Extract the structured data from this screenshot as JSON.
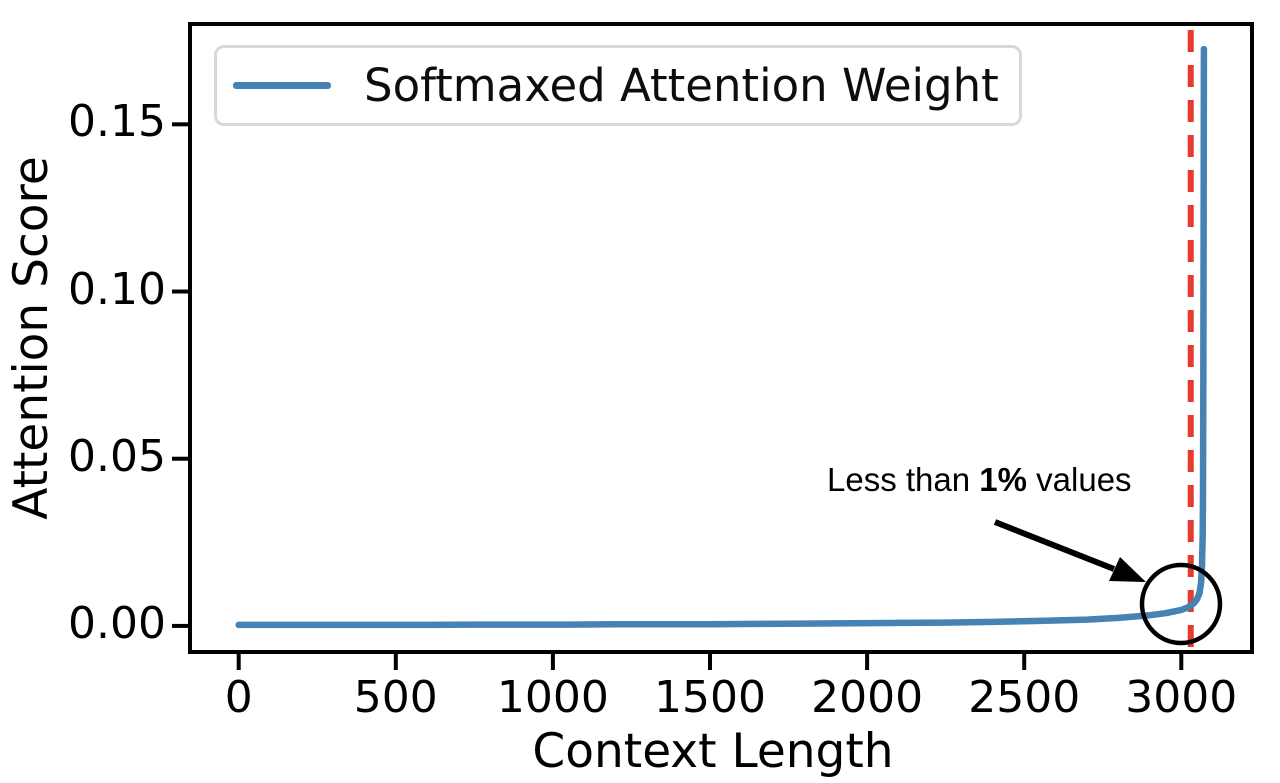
{
  "chart_data": {
    "type": "line",
    "title": "",
    "xlabel": "Context Length",
    "ylabel": "Attention Score",
    "xlim": [
      -155,
      3225
    ],
    "ylim": [
      -0.0078,
      0.18
    ],
    "x_ticks": [
      0,
      500,
      1000,
      1500,
      2000,
      2500,
      3000
    ],
    "x_tick_labels": [
      "0",
      "500",
      "1000",
      "1500",
      "2000",
      "2500",
      "3000"
    ],
    "y_ticks": [
      0.0,
      0.05,
      0.1,
      0.15
    ],
    "y_tick_labels": [
      "0.00",
      "0.05",
      "0.10",
      "0.15"
    ],
    "grid": false,
    "legend_position": "upper left",
    "series": [
      {
        "name": "Softmaxed Attention Weight",
        "color": "#4682b4",
        "points": [
          [
            0,
            0.0003
          ],
          [
            150,
            0.0003
          ],
          [
            300,
            0.0003
          ],
          [
            450,
            0.0003
          ],
          [
            600,
            0.0003
          ],
          [
            750,
            0.0004
          ],
          [
            900,
            0.0004
          ],
          [
            1050,
            0.0004
          ],
          [
            1200,
            0.0005
          ],
          [
            1350,
            0.0005
          ],
          [
            1500,
            0.0005
          ],
          [
            1650,
            0.0006
          ],
          [
            1800,
            0.0007
          ],
          [
            1950,
            0.0008
          ],
          [
            2100,
            0.0009
          ],
          [
            2250,
            0.001
          ],
          [
            2400,
            0.0012
          ],
          [
            2550,
            0.0015
          ],
          [
            2700,
            0.0019
          ],
          [
            2800,
            0.0024
          ],
          [
            2900,
            0.0032
          ],
          [
            2950,
            0.0038
          ],
          [
            3000,
            0.0048
          ],
          [
            3020,
            0.0055
          ],
          [
            3040,
            0.0068
          ],
          [
            3050,
            0.008
          ],
          [
            3058,
            0.0098
          ],
          [
            3063,
            0.013
          ],
          [
            3066,
            0.018
          ],
          [
            3068,
            0.027
          ],
          [
            3069,
            0.04
          ],
          [
            3070,
            0.07
          ],
          [
            3071,
            0.115
          ],
          [
            3072,
            0.1725
          ]
        ]
      }
    ],
    "vline": {
      "x": 3030,
      "color": "#e63a2e",
      "style": "dashed"
    },
    "annotation": {
      "text_pre": "Less than ",
      "text_bold": "1%",
      "text_post": " values"
    }
  },
  "colors": {
    "line_blue": "#4682b4",
    "vline_red": "#e63a2e",
    "axis_black": "#000000",
    "legend_border": "#d8d8d8",
    "annotation_black": "#000000"
  }
}
